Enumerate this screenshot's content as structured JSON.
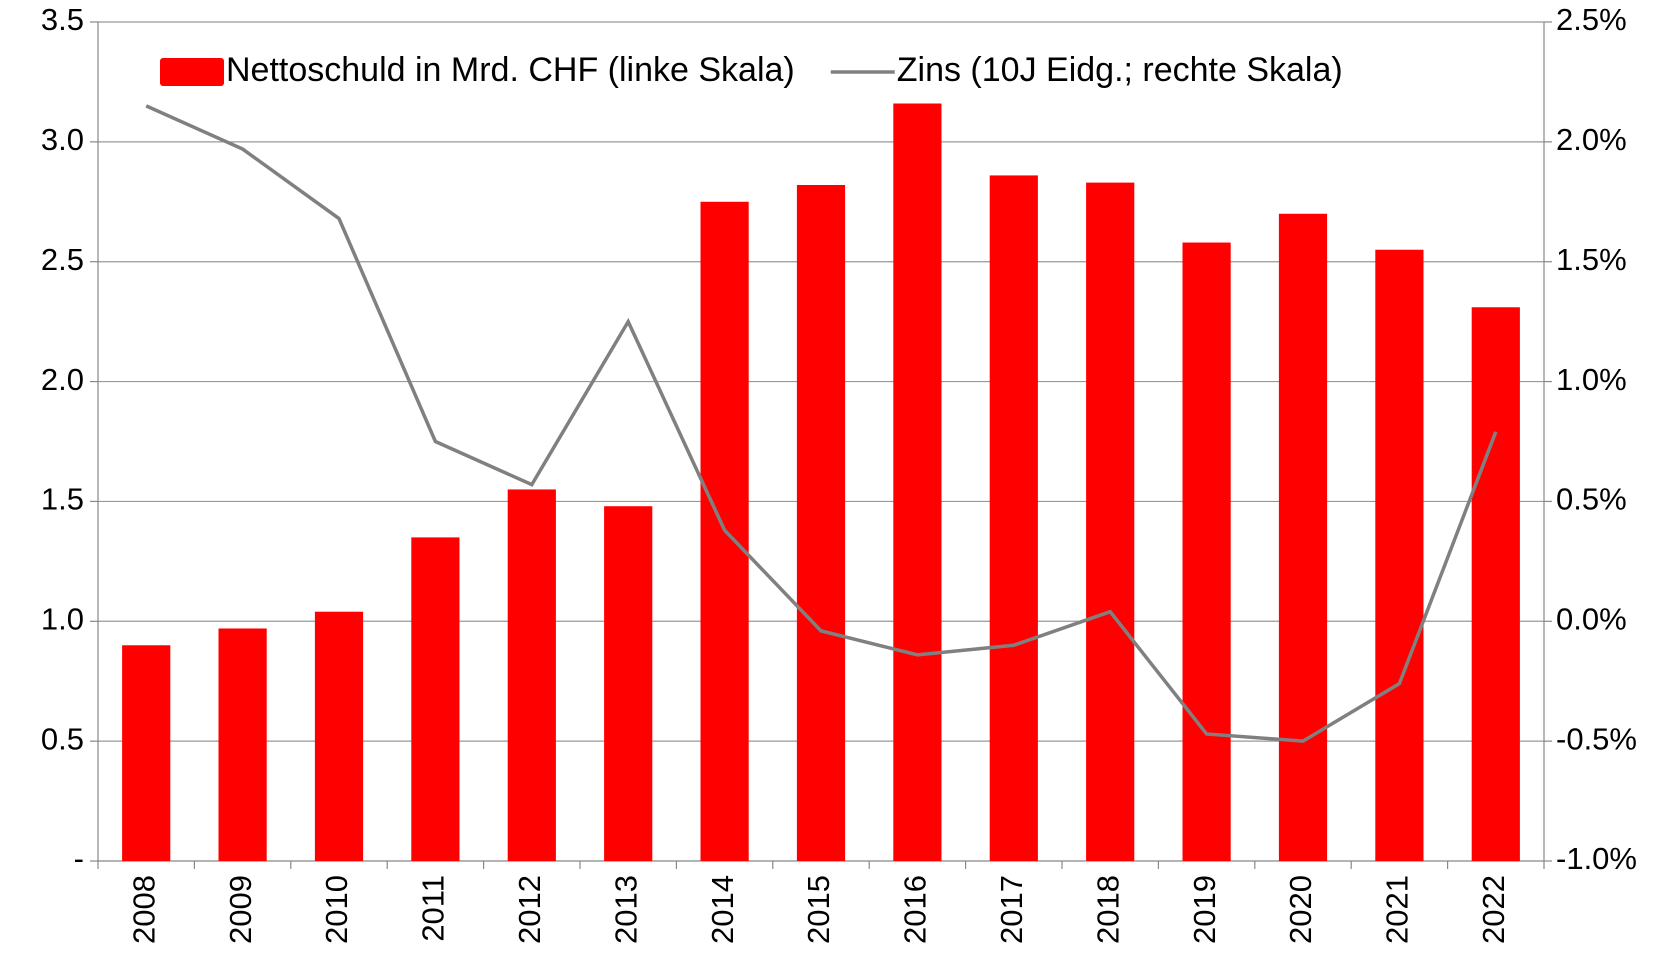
{
  "chart_data": {
    "type": "bar_line",
    "categories": [
      "2008",
      "2009",
      "2010",
      "2011",
      "2012",
      "2013",
      "2014",
      "2015",
      "2016",
      "2017",
      "2018",
      "2019",
      "2020",
      "2021",
      "2022"
    ],
    "series": [
      {
        "name": "Nettoschuld in Mrd. CHF (linke Skala)",
        "type": "bar",
        "color": "#ff0000",
        "values": [
          0.9,
          0.97,
          1.04,
          1.35,
          1.55,
          1.48,
          2.75,
          2.82,
          3.16,
          2.86,
          2.83,
          2.58,
          2.7,
          2.55,
          2.31
        ]
      },
      {
        "name": "Zins (10J Eidg.; rechte Skala)",
        "type": "line",
        "axis": "y2",
        "color": "#808080",
        "values": [
          2.15,
          1.97,
          1.68,
          0.75,
          0.57,
          1.25,
          0.38,
          -0.04,
          -0.14,
          -0.1,
          0.04,
          -0.47,
          -0.5,
          -0.26,
          0.79
        ]
      }
    ],
    "ylim": [
      0,
      3.5
    ],
    "yticks": [
      {
        "value": 0,
        "label": "-"
      },
      0.5,
      {
        "value": 1,
        "label": "1.0"
      },
      1.5,
      {
        "value": 2,
        "label": "2.0"
      },
      2.5,
      {
        "value": 3,
        "label": "3.0"
      },
      3.5
    ],
    "y2lim": [
      -1,
      2.5
    ],
    "y2ticks": [
      {
        "value": -1,
        "label": "-1.0%"
      },
      {
        "value": -0.5,
        "label": "-0.5%"
      },
      {
        "value": 0,
        "label": "0.0%"
      },
      {
        "value": 0.5,
        "label": "0.5%"
      },
      {
        "value": 1,
        "label": "1.0%"
      },
      {
        "value": 1.5,
        "label": "1.5%"
      },
      {
        "value": 2,
        "label": "2.0%"
      },
      {
        "value": 2.5,
        "label": "2.5%"
      }
    ],
    "grid": true,
    "legend": "top"
  }
}
